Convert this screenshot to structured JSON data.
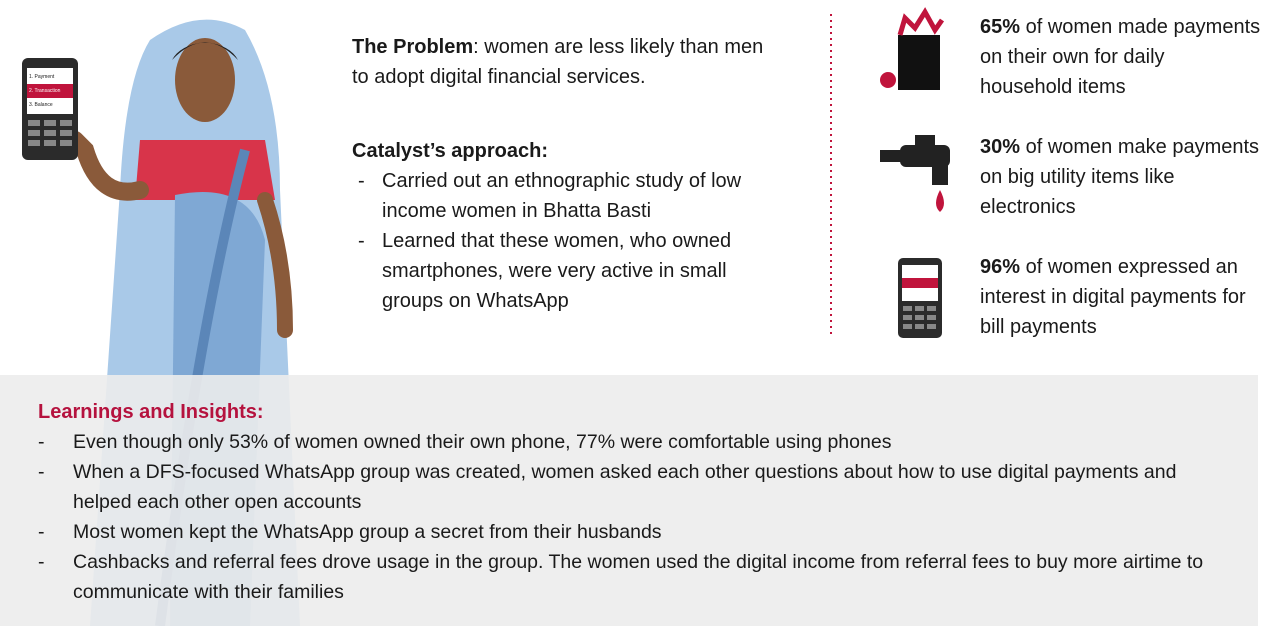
{
  "phone_screen": [
    "1. Payment",
    "2. Transaction",
    "3. Balance"
  ],
  "problem": {
    "label": "The Problem",
    "text": ": women are less likely than men to adopt digital financial services."
  },
  "approach": {
    "title": "Catalyst’s approach:",
    "items": [
      "Carried out an ethnographic study of low income women in Bhatta Basti",
      "Learned that these women, who owned smartphones, were very active in small groups on WhatsApp"
    ]
  },
  "stats": [
    {
      "percent": "65%",
      "text": " of women made payments on their own for daily household items"
    },
    {
      "percent": "30%",
      "text": " of women make payments on big utility items like electronics"
    },
    {
      "percent": "96%",
      "text": " of women expressed an interest in digital payments for bill payments"
    }
  ],
  "insights": {
    "title": "Learnings and Insights:",
    "items": [
      "Even though only 53% of women owned their own phone, 77% were comfortable using phones",
      "When a DFS-focused WhatsApp group was created, women asked each other questions about how to use digital payments and helped each other open accounts",
      "Most women kept the WhatsApp group a secret from their husbands",
      "Cashbacks and referral fees drove usage in the group. The women used the digital income from referral fees to buy more airtime to communicate with their families"
    ]
  }
}
